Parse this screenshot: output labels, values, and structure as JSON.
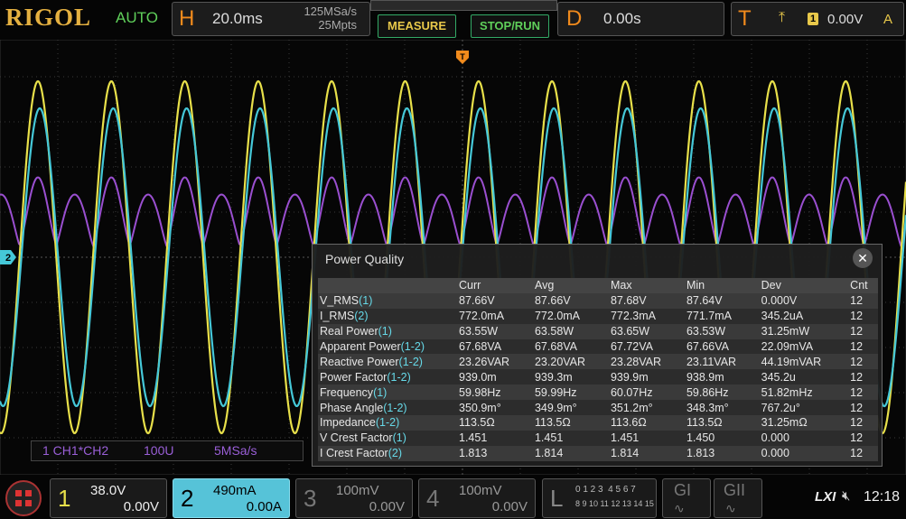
{
  "header": {
    "brand": "RIGOL",
    "mode": "AUTO",
    "horizontal": {
      "label": "H",
      "timebase": "20.0ms",
      "sample_rate": "125MSa/s",
      "memory_depth": "25Mpts"
    },
    "buttons": [
      "MEASURE",
      "STOP/RUN"
    ],
    "delay": {
      "label": "D",
      "value": "0.00s"
    },
    "trigger": {
      "label": "T",
      "source": "1",
      "level": "0.00V",
      "sweep": "A"
    }
  },
  "screen": {
    "channel_marker": "2",
    "trigger_marker": "T",
    "math_label": {
      "source": "1 CH1*CH2",
      "scale": "100U",
      "rate": "5MSa/s"
    }
  },
  "power_quality": {
    "title": "Power Quality",
    "columns": [
      "Curr",
      "Avg",
      "Max",
      "Min",
      "Dev",
      "Cnt"
    ],
    "rows": [
      {
        "name": "V_RMS",
        "source": "(1)",
        "cells": [
          "87.66V",
          "87.66V",
          "87.68V",
          "87.64V",
          "0.000V",
          "12"
        ]
      },
      {
        "name": "I_RMS",
        "source": "(2)",
        "cells": [
          "772.0mA",
          "772.0mA",
          "772.3mA",
          "771.7mA",
          "345.2uA",
          "12"
        ]
      },
      {
        "name": "Real Power",
        "source": "(1)",
        "cells": [
          "63.55W",
          "63.58W",
          "63.65W",
          "63.53W",
          "31.25mW",
          "12"
        ]
      },
      {
        "name": "Apparent Power",
        "source": "(1-2)",
        "cells": [
          "67.68VA",
          "67.68VA",
          "67.72VA",
          "67.66VA",
          "22.09mVA",
          "12"
        ]
      },
      {
        "name": "Reactive Power",
        "source": "(1-2)",
        "cells": [
          "23.26VAR",
          "23.20VAR",
          "23.28VAR",
          "23.11VAR",
          "44.19mVAR",
          "12"
        ]
      },
      {
        "name": "Power Factor",
        "source": "(1-2)",
        "cells": [
          "939.0m",
          "939.3m",
          "939.9m",
          "938.9m",
          "345.2u",
          "12"
        ]
      },
      {
        "name": "Frequency",
        "source": "(1)",
        "cells": [
          "59.98Hz",
          "59.99Hz",
          "60.07Hz",
          "59.86Hz",
          "51.82mHz",
          "12"
        ]
      },
      {
        "name": "Phase Angle",
        "source": "(1-2)",
        "cells": [
          "350.9m°",
          "349.9m°",
          "351.2m°",
          "348.3m°",
          "767.2u°",
          "12"
        ]
      },
      {
        "name": "Impedance",
        "source": "(1-2)",
        "cells": [
          "113.5Ω",
          "113.5Ω",
          "113.6Ω",
          "113.5Ω",
          "31.25mΩ",
          "12"
        ]
      },
      {
        "name": "V Crest Factor",
        "source": "(1)",
        "cells": [
          "1.451",
          "1.451",
          "1.451",
          "1.450",
          "0.000",
          "12"
        ]
      },
      {
        "name": "I Crest Factor",
        "source": "(2)",
        "cells": [
          "1.813",
          "1.814",
          "1.814",
          "1.813",
          "0.000",
          "12"
        ]
      }
    ]
  },
  "footer": {
    "channels": [
      {
        "number": "1",
        "scale": "38.0V",
        "offset": "0.00V"
      },
      {
        "number": "2",
        "scale": "490mA",
        "offset": "0.00A"
      },
      {
        "number": "3",
        "scale": "100mV",
        "offset": "0.00V"
      },
      {
        "number": "4",
        "scale": "100mV",
        "offset": "0.00V"
      }
    ],
    "logic": {
      "label": "L",
      "row1": "0 1 2 3  4 5 6 7",
      "row2": "8 9 10 11 12 13 14 15"
    },
    "buses": [
      "GI",
      "GII"
    ],
    "lxi": "LXI",
    "time": "12:18"
  }
}
